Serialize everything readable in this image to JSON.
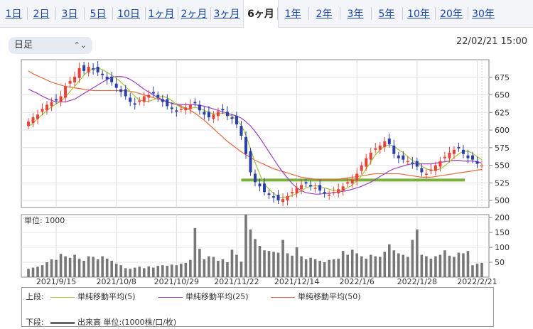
{
  "tabs": [
    "1日",
    "2日",
    "3日",
    "5日",
    "10日",
    "1ヶ月",
    "2ヶ月",
    "3ヶ月",
    "6ヶ月",
    "1年",
    "2年",
    "3年",
    "5年",
    "10年",
    "20年",
    "30年"
  ],
  "active_tab": "6ヶ月",
  "period_select": {
    "value": "日足",
    "icon": "chevron-updown-icon"
  },
  "timestamp": "22/02/21 15:00",
  "colors": {
    "up": "#e8413a",
    "down": "#2a3fa8",
    "ma5": "#a4c43a",
    "ma25": "#9b3fc1",
    "ma50": "#e2683c",
    "support": "#7bb03a",
    "volume": "#777777"
  },
  "chart_data": {
    "type": "candlestick",
    "price_axis": {
      "ticks": [
        500,
        525,
        550,
        575,
        600,
        625,
        650,
        675
      ],
      "range": [
        490,
        700
      ]
    },
    "volume_axis": {
      "label": "単位: 1000",
      "ticks": [
        50,
        100,
        150,
        200
      ],
      "range": [
        0,
        210
      ]
    },
    "x_labels": [
      "2021/9/15",
      "2021/10/8",
      "2021/10/29",
      "2021/11/22",
      "2021/12/14",
      "2022/1/6",
      "2022/1/28",
      "2022/2/21"
    ],
    "close": [
      612,
      618,
      622,
      630,
      636,
      640,
      642,
      648,
      662,
      670,
      676,
      688,
      684,
      690,
      686,
      682,
      678,
      672,
      668,
      660,
      654,
      648,
      640,
      636,
      642,
      648,
      650,
      652,
      646,
      640,
      634,
      630,
      626,
      630,
      632,
      636,
      638,
      628,
      622,
      618,
      622,
      626,
      628,
      620,
      616,
      608,
      592,
      566,
      540,
      526,
      520,
      512,
      508,
      504,
      500,
      502,
      506,
      512,
      518,
      522,
      524,
      520,
      518,
      514,
      510,
      508,
      512,
      516,
      520,
      526,
      530,
      538,
      550,
      560,
      568,
      574,
      578,
      584,
      580,
      566,
      560,
      558,
      556,
      552,
      548,
      540,
      538,
      544,
      550,
      556,
      562,
      568,
      572,
      574,
      566,
      560,
      558,
      552,
      550
    ],
    "volume": [
      28,
      32,
      35,
      40,
      50,
      60,
      58,
      78,
      70,
      65,
      75,
      62,
      55,
      70,
      68,
      60,
      70,
      62,
      55,
      45,
      40,
      30,
      28,
      32,
      35,
      30,
      36,
      32,
      38,
      40,
      38,
      42,
      40,
      45,
      48,
      58,
      165,
      95,
      60,
      70,
      68,
      55,
      60,
      50,
      92,
      75,
      52,
      210,
      160,
      128,
      105,
      90,
      88,
      85,
      82,
      125,
      80,
      72,
      100,
      70,
      60,
      65,
      60,
      55,
      50,
      58,
      60,
      62,
      88,
      75,
      92,
      80,
      70,
      62,
      75,
      70,
      68,
      85,
      110,
      90,
      80,
      75,
      68,
      125,
      160,
      75,
      70,
      62,
      70,
      75,
      90,
      72,
      68,
      82,
      80,
      88,
      40,
      45,
      48
    ],
    "ma5": [
      605,
      610,
      616,
      622,
      628,
      633,
      637,
      641,
      647,
      655,
      662,
      670,
      678,
      684,
      687,
      688,
      686,
      682,
      678,
      674,
      668,
      662,
      655,
      648,
      643,
      641,
      641,
      643,
      646,
      648,
      646,
      642,
      636,
      632,
      630,
      631,
      632,
      631,
      628,
      625,
      623,
      623,
      624,
      622,
      620,
      615,
      607,
      593,
      573,
      554,
      537,
      523,
      516,
      510,
      505,
      504,
      505,
      507,
      510,
      514,
      518,
      520,
      521,
      520,
      518,
      516,
      514,
      514,
      515,
      518,
      522,
      528,
      535,
      545,
      555,
      565,
      572,
      577,
      579,
      577,
      572,
      568,
      562,
      557,
      553,
      549,
      545,
      543,
      543,
      545,
      549,
      555,
      561,
      566,
      570,
      570,
      567,
      562,
      558
    ],
    "ma25": [
      658,
      655,
      652,
      648,
      645,
      642,
      640,
      640,
      640,
      642,
      644,
      648,
      652,
      656,
      660,
      664,
      668,
      672,
      675,
      676,
      676,
      675,
      672,
      668,
      663,
      658,
      654,
      650,
      646,
      643,
      640,
      638,
      637,
      636,
      636,
      636,
      636,
      635,
      634,
      632,
      630,
      628,
      626,
      624,
      622,
      620,
      617,
      612,
      606,
      598,
      589,
      579,
      569,
      559,
      549,
      540,
      532,
      524,
      518,
      514,
      511,
      510,
      509,
      509,
      510,
      510,
      511,
      512,
      513,
      514,
      516,
      518,
      520,
      523,
      526,
      530,
      534,
      538,
      542,
      545,
      547,
      549,
      551,
      552,
      552,
      552,
      552,
      552,
      553,
      554,
      555,
      556,
      557,
      557,
      556,
      556,
      556,
      555,
      553
    ],
    "ma50": [
      684,
      680,
      677,
      674,
      671,
      668,
      666,
      664,
      662,
      661,
      660,
      659,
      658,
      657,
      656,
      656,
      656,
      656,
      656,
      656,
      656,
      656,
      655,
      654,
      652,
      650,
      648,
      646,
      644,
      642,
      640,
      638,
      636,
      634,
      631,
      628,
      624,
      619,
      614,
      608,
      602,
      596,
      590,
      584,
      579,
      574,
      569,
      565,
      561,
      557,
      554,
      551,
      548,
      545,
      543,
      541,
      539,
      537,
      535,
      533,
      532,
      531,
      530,
      529,
      529,
      529,
      529,
      530,
      531,
      532,
      533,
      534,
      535,
      536,
      537,
      538,
      538,
      538,
      538,
      538,
      538,
      537,
      536,
      535,
      534,
      533,
      533,
      533,
      534,
      535,
      536,
      537,
      538,
      539,
      540,
      541,
      542,
      543,
      544
    ],
    "support_level": 529,
    "marker_index": 98
  },
  "legend": {
    "upper_label": "上段:",
    "lower_label": "下段:",
    "ma5": "単純移動平均(5)",
    "ma25": "単純移動平均(25)",
    "ma50": "単純移動平均(50)",
    "volume": "出来高 単位:(1000株/口/枚)"
  }
}
